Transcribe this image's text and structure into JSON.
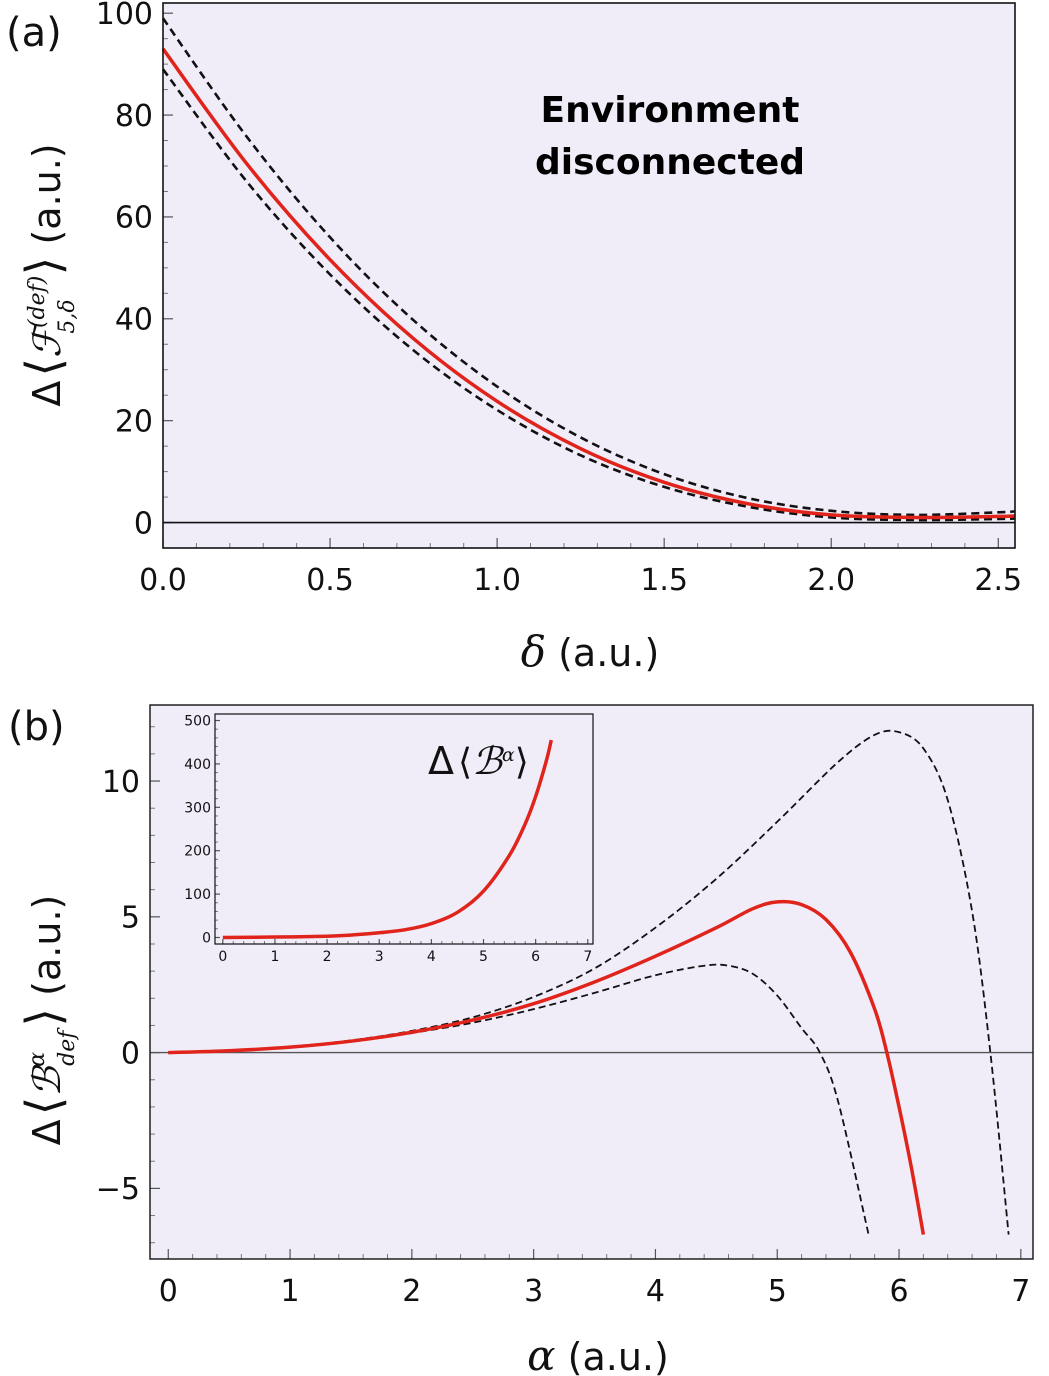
{
  "chart_data": [
    {
      "panel_label": "(a)",
      "type": "line",
      "xlabel_symbol": "δ",
      "xlabel_unit": " (a.u.)",
      "ylabel_delta": "Δ",
      "ylabel_symbol": "ℱ",
      "ylabel_superscript": "(def)",
      "ylabel_subscript": "5,δ",
      "ylabel_unit": " (a.u.)",
      "annotation": [
        "Environment",
        "disconnected"
      ],
      "xlim": [
        0,
        2.55
      ],
      "ylim": [
        -5,
        102
      ],
      "xticks": [
        0.0,
        0.5,
        1.0,
        1.5,
        2.0,
        2.5
      ],
      "xtick_labels": [
        "0.0",
        "0.5",
        "1.0",
        "1.5",
        "2.0",
        "2.5"
      ],
      "yticks": [
        0,
        20,
        40,
        60,
        80,
        100
      ],
      "ytick_labels": [
        "0",
        "20",
        "40",
        "60",
        "80",
        "100"
      ],
      "background": "#f0edf9",
      "series": [
        {
          "style": "solid",
          "color": "#e0241b",
          "x": [
            0,
            0.25,
            0.5,
            0.75,
            1.0,
            1.25,
            1.5,
            1.75,
            2.0,
            2.25,
            2.5,
            2.55
          ],
          "y": [
            93,
            70.5,
            51.6,
            36.1,
            23.8,
            14.5,
            7.9,
            3.7,
            1.5,
            1.0,
            1.2,
            1.3
          ]
        },
        {
          "style": "dashed",
          "color": "#111111",
          "x": [
            0,
            0.25,
            0.5,
            0.75,
            1.0,
            1.25,
            1.5,
            1.75,
            2.0,
            2.25,
            2.5,
            2.55
          ],
          "y": [
            99,
            75.8,
            56.0,
            39.7,
            26.7,
            16.7,
            9.5,
            4.8,
            2.3,
            1.5,
            2.0,
            2.2
          ]
        },
        {
          "style": "dashed",
          "color": "#111111",
          "x": [
            0,
            0.25,
            0.5,
            0.75,
            1.0,
            1.25,
            1.5,
            1.75,
            2.0,
            2.25,
            2.5,
            2.55
          ],
          "y": [
            89,
            67.0,
            48.7,
            33.8,
            22.1,
            13.2,
            7.0,
            3.1,
            1.0,
            0.5,
            0.7,
            0.8
          ]
        }
      ]
    },
    {
      "panel_label": "(b)",
      "type": "line",
      "xlabel_symbol": "α",
      "xlabel_unit": " (a.u.)",
      "ylabel_delta": "Δ",
      "ylabel_symbol": "ℬ",
      "ylabel_superscript": "α",
      "ylabel_subscript": "def",
      "ylabel_unit": " (a.u.)",
      "xlim": [
        -0.15,
        7.1
      ],
      "ylim": [
        -7.6,
        12.8
      ],
      "xticks": [
        0,
        1,
        2,
        3,
        4,
        5,
        6,
        7
      ],
      "xtick_labels": [
        "0",
        "1",
        "2",
        "3",
        "4",
        "5",
        "6",
        "7"
      ],
      "yticks": [
        -5,
        0,
        5,
        10
      ],
      "ytick_labels": [
        "−5",
        "0",
        "5",
        "10"
      ],
      "background": "#f0edf9",
      "series": [
        {
          "style": "solid",
          "color": "#e0241b",
          "x": [
            0,
            0.5,
            1,
            1.5,
            2,
            2.5,
            3,
            3.5,
            4,
            4.5,
            4.8,
            5.0,
            5.2,
            5.4,
            5.6,
            5.8,
            5.9,
            6.0,
            6.1,
            6.2
          ],
          "y": [
            0,
            0.07,
            0.2,
            0.42,
            0.75,
            1.2,
            1.8,
            2.6,
            3.55,
            4.6,
            5.3,
            5.55,
            5.45,
            4.9,
            3.7,
            1.6,
            0,
            -2.0,
            -4.2,
            -6.7
          ]
        },
        {
          "style": "dashed",
          "color": "#111111",
          "x": [
            0,
            0.5,
            1,
            1.5,
            2,
            2.5,
            3,
            3.5,
            4,
            4.5,
            5,
            5.5,
            5.8,
            6.0,
            6.2,
            6.4,
            6.6,
            6.75,
            6.9
          ],
          "y": [
            0,
            0.07,
            0.22,
            0.45,
            0.8,
            1.3,
            2.05,
            3.1,
            4.6,
            6.4,
            8.5,
            10.7,
            11.7,
            11.8,
            11.2,
            9.3,
            5.2,
            0,
            -6.7
          ]
        },
        {
          "style": "dashed",
          "color": "#111111",
          "x": [
            0,
            0.5,
            1,
            1.5,
            2,
            2.5,
            3,
            3.5,
            4,
            4.4,
            4.6,
            4.8,
            5.0,
            5.2,
            5.35,
            5.5,
            5.75
          ],
          "y": [
            0,
            0.06,
            0.2,
            0.4,
            0.72,
            1.1,
            1.6,
            2.2,
            2.85,
            3.2,
            3.2,
            2.9,
            2.1,
            0.9,
            0,
            -1.8,
            -6.7
          ]
        }
      ],
      "inset": {
        "type": "line",
        "label_delta": "Δ",
        "label_symbol": "ℬ",
        "label_superscript": "α",
        "xlim": [
          -0.15,
          7.1
        ],
        "ylim": [
          -15,
          515
        ],
        "xticks": [
          0,
          1,
          2,
          3,
          4,
          5,
          6,
          7
        ],
        "xtick_labels": [
          "0",
          "1",
          "2",
          "3",
          "4",
          "5",
          "6",
          "7"
        ],
        "yticks": [
          0,
          100,
          200,
          300,
          400,
          500
        ],
        "ytick_labels": [
          "0",
          "100",
          "200",
          "300",
          "400",
          "500"
        ],
        "series": [
          {
            "style": "solid",
            "color": "#e0241b",
            "x": [
              0,
              1,
              2,
              2.5,
              3,
              3.5,
              4,
              4.5,
              5,
              5.5,
              5.8,
              6.0,
              6.2,
              6.3
            ],
            "y": [
              0,
              1,
              3,
              6,
              11,
              18,
              32,
              58,
              107,
              190,
              262,
              325,
              405,
              455
            ]
          }
        ]
      }
    }
  ]
}
